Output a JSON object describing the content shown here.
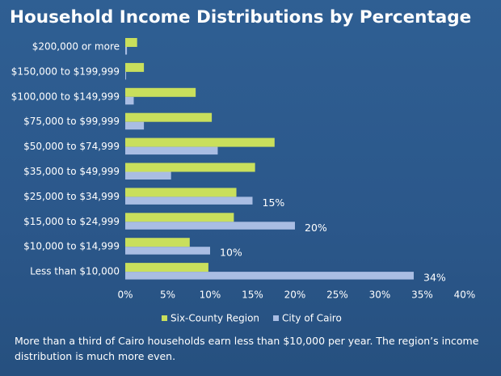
{
  "chart_data": {
    "type": "bar",
    "title": "Household Income Distributions by Percentage",
    "caption": "More than a third of Cairo households earn less than $10,000 per year. The region’s income distribution is much more even.",
    "categories": [
      "$200,000 or more",
      "$150,000 to $199,999",
      "$100,000 to $149,999",
      "$75,000 to $99,999",
      "$50,000 to $74,999",
      "$35,000 to $49,999",
      "$25,000 to $34,999",
      "$15,000 to $24,999",
      "$10,000 to $14,999",
      "Less than $10,000"
    ],
    "series": [
      {
        "name": "Six-County Region",
        "color": "#c9df5c",
        "values": [
          1.4,
          2.2,
          8.3,
          10.2,
          17.6,
          15.3,
          13.1,
          12.8,
          7.6,
          9.8
        ]
      },
      {
        "name": "City of Cairo",
        "color": "#a9bde3",
        "values": [
          0.2,
          0.1,
          1.0,
          2.2,
          10.9,
          5.4,
          15,
          20,
          10,
          34
        ],
        "value_labels": [
          null,
          null,
          null,
          null,
          null,
          null,
          "15%",
          "20%",
          "10%",
          "34%"
        ]
      }
    ],
    "xlim": [
      0,
      40
    ],
    "xticks": [
      {
        "value": 0,
        "label": "0%"
      },
      {
        "value": 5,
        "label": "5%"
      },
      {
        "value": 10,
        "label": "10%"
      },
      {
        "value": 15,
        "label": "15%"
      },
      {
        "value": 20,
        "label": "20%"
      },
      {
        "value": 25,
        "label": "25%"
      },
      {
        "value": 30,
        "label": "30%"
      },
      {
        "value": 35,
        "label": "35%"
      },
      {
        "value": 40,
        "label": "40%"
      }
    ]
  }
}
